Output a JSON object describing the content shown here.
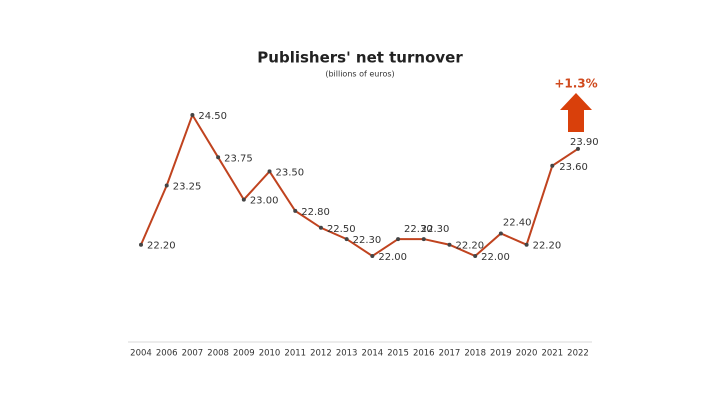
{
  "chart_data": {
    "type": "line",
    "title": "Publishers' net turnover",
    "subtitle": "(billions of euros)",
    "annotation": "+1.3%",
    "categories": [
      "2004",
      "2006",
      "2007",
      "2008",
      "2009",
      "2010",
      "2011",
      "2012",
      "2013",
      "2014",
      "2015",
      "2016",
      "2017",
      "2018",
      "2019",
      "2020",
      "2021",
      "2022"
    ],
    "series": [
      {
        "name": "Publishers' net turnover",
        "color": "#c0431f",
        "values": [
          22.2,
          23.25,
          24.5,
          23.75,
          23.0,
          23.5,
          22.8,
          22.5,
          22.3,
          22.0,
          22.3,
          22.3,
          22.2,
          22.0,
          22.4,
          22.2,
          23.6,
          23.9
        ],
        "value_labels": [
          "22.20",
          "23.25",
          "24.50",
          "23.75",
          "23.00",
          "23.50",
          "22.80",
          "22.50",
          "22.30",
          "22.00",
          "22.30",
          "22.30",
          "22.20",
          "22.00",
          "22.40",
          "22.20",
          "23.60",
          "23.90"
        ]
      }
    ],
    "annotation_color": "#d04a1e"
  }
}
